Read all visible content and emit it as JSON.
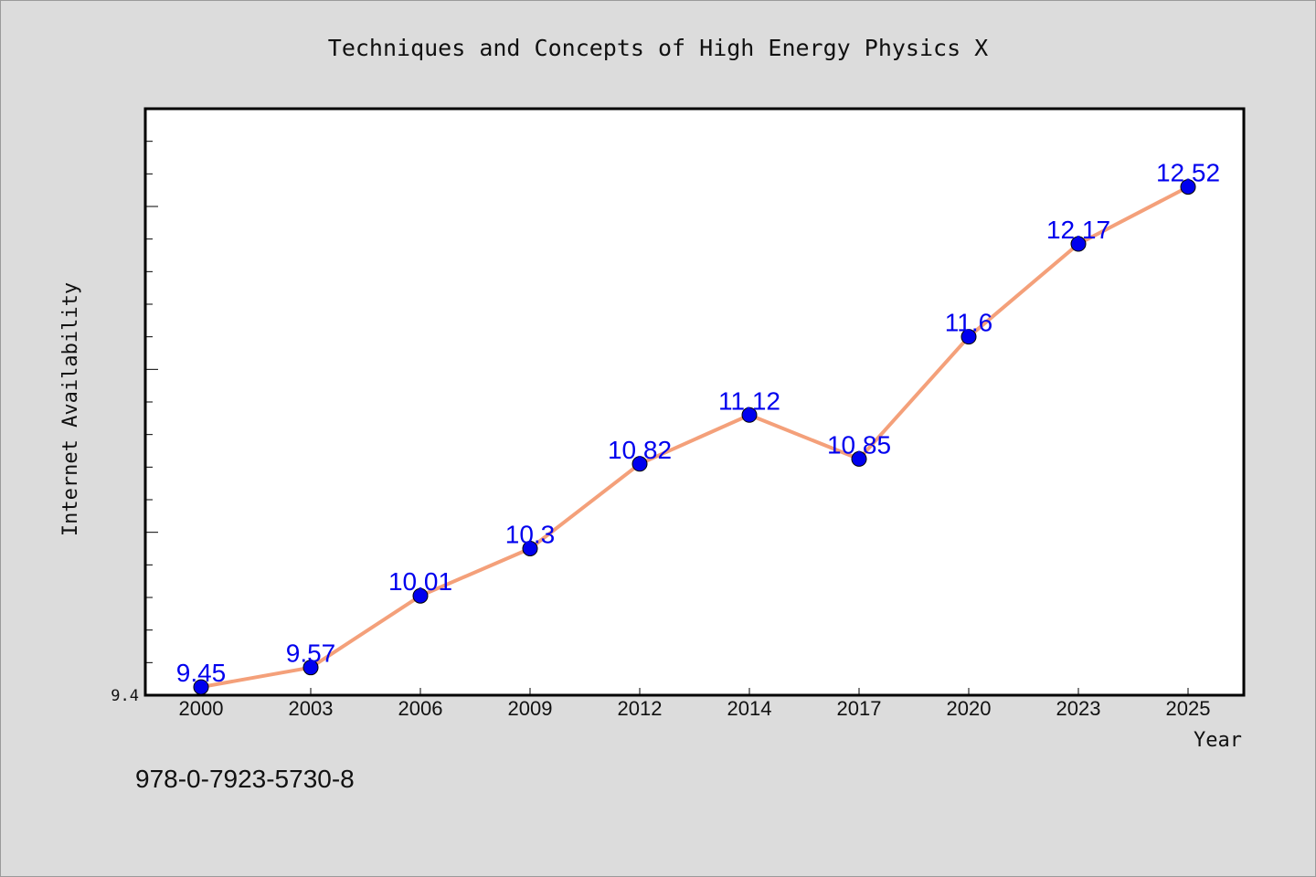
{
  "chart_data": {
    "type": "line",
    "title": "Techniques and Concepts of High Energy Physics X",
    "xlabel": "Year",
    "ylabel": "Internet Availability",
    "x": [
      "2000",
      "2003",
      "2006",
      "2009",
      "2012",
      "2014",
      "2017",
      "2020",
      "2023",
      "2025"
    ],
    "series": [
      {
        "values": [
          9.45,
          9.57,
          10.01,
          10.3,
          10.82,
          11.12,
          10.85,
          11.6,
          12.17,
          12.52
        ],
        "data_labels": [
          "9.45",
          "9.57",
          "10.01",
          "10.3",
          "10.82",
          "11.12",
          "10.85",
          "11.6",
          "12.17",
          "12.52"
        ]
      }
    ],
    "ylim": [
      9.4,
      13.0
    ],
    "y_tick_label": "9.4",
    "grid": false,
    "line_color": "#f4a07a",
    "marker_color": "#0000ee",
    "label_color": "#0000ee"
  },
  "footer": {
    "isbn": "978-0-7923-5730-8"
  }
}
